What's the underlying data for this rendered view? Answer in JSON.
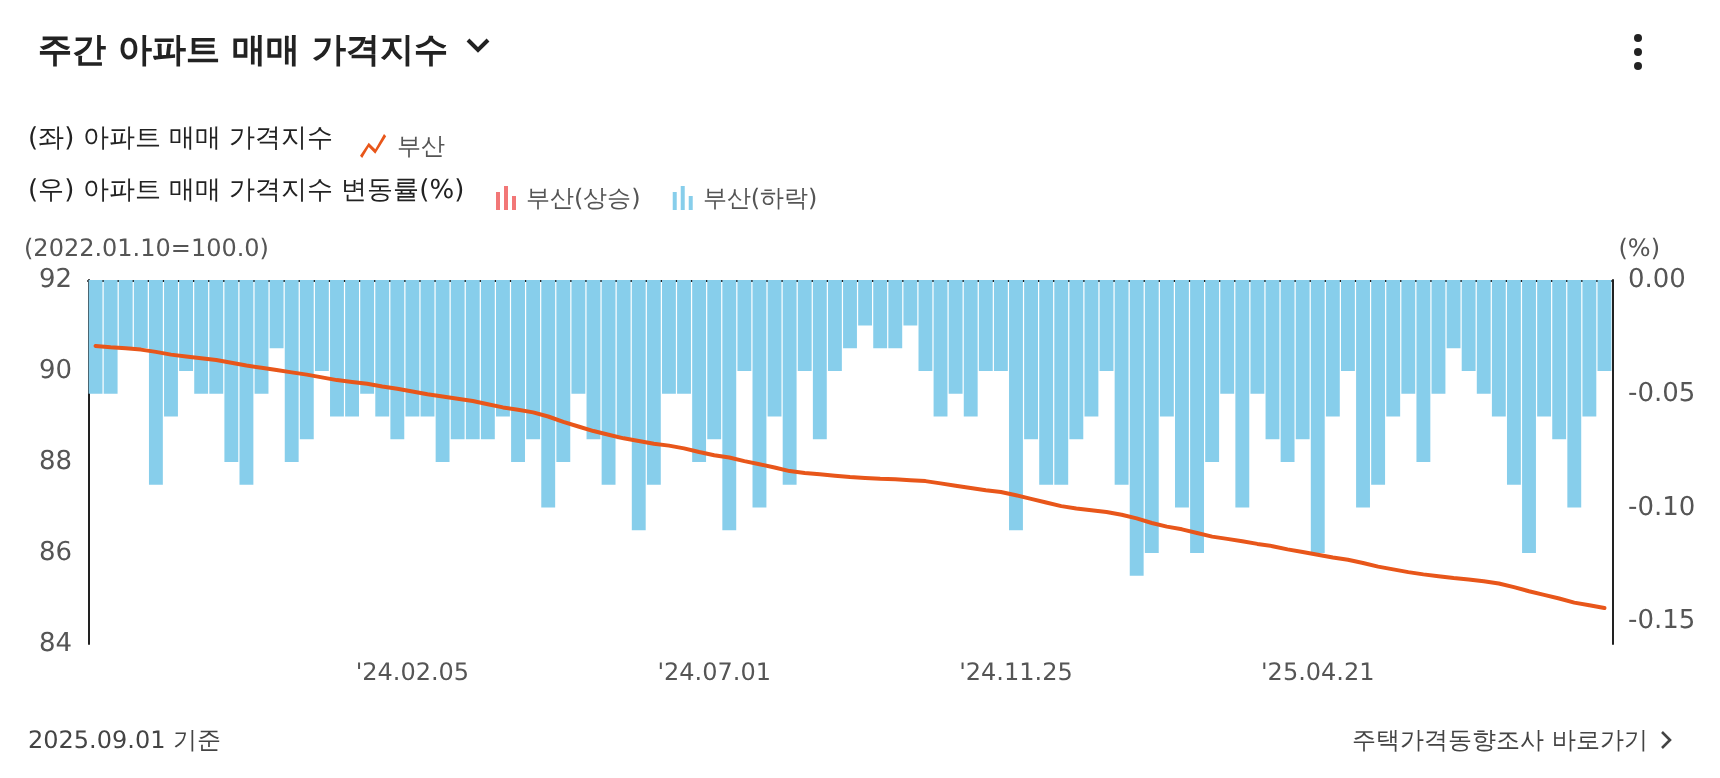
{
  "chart_data": {
    "type": "bar",
    "title": "주간 아파트 매매 가격지수",
    "ylabel": "(2022.01.10=100.0)",
    "y2label": "(%)",
    "annotations": [
      "(좌) 아파트 매매 가격지수",
      "(우) 아파트 매매 가격지수 변동률(%)",
      "2025.09.01 기준",
      "주택가격동향조사 바로가기"
    ],
    "categories": [
      null,
      null,
      null,
      null,
      null,
      null,
      null,
      null,
      null,
      null,
      null,
      null,
      null,
      null,
      null,
      null,
      null,
      null,
      null,
      null,
      null,
      "'24.02.05",
      null,
      null,
      null,
      null,
      null,
      null,
      null,
      null,
      null,
      null,
      null,
      null,
      null,
      null,
      null,
      null,
      null,
      null,
      null,
      "'24.07.01",
      null,
      null,
      null,
      null,
      null,
      null,
      null,
      null,
      null,
      null,
      null,
      null,
      null,
      null,
      null,
      null,
      null,
      null,
      null,
      "'24.11.25",
      null,
      null,
      null,
      null,
      null,
      null,
      null,
      null,
      null,
      null,
      null,
      null,
      null,
      null,
      null,
      null,
      null,
      null,
      null,
      "'25.04.21",
      null,
      null,
      null,
      null,
      null,
      null,
      null,
      null,
      null,
      null,
      null,
      null,
      null,
      null,
      null,
      null,
      null,
      null,
      null
    ],
    "series": [
      {
        "name": "부산",
        "type": "line",
        "color": "#e8561a",
        "values": [
          90.55,
          90.52,
          90.5,
          90.47,
          90.42,
          90.36,
          90.32,
          90.28,
          90.24,
          90.18,
          90.12,
          90.07,
          90.02,
          89.97,
          89.92,
          89.86,
          89.8,
          89.76,
          89.72,
          89.66,
          89.61,
          89.55,
          89.49,
          89.44,
          89.39,
          89.34,
          89.27,
          89.2,
          89.15,
          89.09,
          89.0,
          88.88,
          88.78,
          88.68,
          88.6,
          88.52,
          88.46,
          88.4,
          88.36,
          88.3,
          88.22,
          88.15,
          88.1,
          88.02,
          87.95,
          87.88,
          87.8,
          87.76,
          87.73,
          87.7,
          87.67,
          87.65,
          87.63,
          87.62,
          87.6,
          87.58,
          87.53,
          87.48,
          87.43,
          87.38,
          87.34,
          87.27,
          87.19,
          87.11,
          87.03,
          86.98,
          86.94,
          86.9,
          86.84,
          86.76,
          86.66,
          86.58,
          86.52,
          86.44,
          86.36,
          86.31,
          86.26,
          86.2,
          86.15,
          86.08,
          86.02,
          85.96,
          85.9,
          85.85,
          85.78,
          85.7,
          85.64,
          85.58,
          85.53,
          85.49,
          85.45,
          85.42,
          85.38,
          85.33,
          85.25,
          85.16,
          85.08,
          85.0,
          84.91,
          84.85,
          84.79
        ]
      },
      {
        "name": "부산(상승)",
        "axis": "y2",
        "color": "#f27777",
        "values": [
          null,
          null,
          null,
          null,
          null,
          null,
          null,
          null,
          null,
          null,
          null,
          null,
          null,
          null,
          null,
          null,
          null,
          null,
          null,
          null,
          null,
          null,
          null,
          null,
          null,
          null,
          null,
          null,
          null,
          null,
          null,
          null,
          null,
          null,
          null,
          null,
          null,
          null,
          null,
          null,
          null,
          null,
          null,
          null,
          null,
          null,
          null,
          null,
          null,
          null,
          null,
          null,
          null,
          null,
          null,
          null,
          null,
          null,
          null,
          null,
          null,
          null,
          null,
          null,
          null,
          null,
          null,
          null,
          null,
          null,
          null,
          null,
          null,
          null,
          null,
          null,
          null,
          null,
          null,
          null,
          null,
          null,
          null,
          null,
          null,
          null,
          null,
          null,
          null,
          null,
          null,
          null,
          null,
          null,
          null,
          null,
          null,
          null,
          null,
          null,
          null
        ]
      },
      {
        "name": "부산(하락)",
        "axis": "y2",
        "color": "#87ceeb",
        "values": [
          -0.05,
          -0.05,
          -0.03,
          -0.03,
          -0.09,
          -0.06,
          -0.04,
          -0.05,
          -0.05,
          -0.08,
          -0.09,
          -0.05,
          -0.03,
          -0.08,
          -0.07,
          -0.04,
          -0.06,
          -0.06,
          -0.05,
          -0.06,
          -0.07,
          -0.06,
          -0.06,
          -0.08,
          -0.07,
          -0.07,
          -0.07,
          -0.06,
          -0.08,
          -0.07,
          -0.1,
          -0.08,
          -0.05,
          -0.07,
          -0.09,
          -0.07,
          -0.11,
          -0.09,
          -0.05,
          -0.05,
          -0.08,
          -0.07,
          -0.11,
          -0.04,
          -0.1,
          -0.06,
          -0.09,
          -0.04,
          -0.07,
          -0.04,
          -0.03,
          -0.02,
          -0.03,
          -0.03,
          -0.02,
          -0.04,
          -0.06,
          -0.05,
          -0.06,
          -0.04,
          -0.04,
          -0.11,
          -0.07,
          -0.09,
          -0.09,
          -0.07,
          -0.06,
          -0.04,
          -0.09,
          -0.13,
          -0.12,
          -0.06,
          -0.1,
          -0.12,
          -0.08,
          -0.05,
          -0.1,
          -0.05,
          -0.07,
          -0.08,
          -0.07,
          -0.12,
          -0.06,
          -0.04,
          -0.1,
          -0.09,
          -0.06,
          -0.05,
          -0.08,
          -0.05,
          -0.03,
          -0.04,
          -0.05,
          -0.06,
          -0.09,
          -0.12,
          -0.06,
          -0.07,
          -0.1,
          -0.06,
          -0.04
        ]
      }
    ],
    "ylim": [
      84,
      92
    ],
    "yticks": [
      84,
      86,
      88,
      90,
      92
    ],
    "y2lim": [
      -0.16,
      0
    ],
    "y2ticks": [
      {
        "value": 0,
        "label": "0.00"
      },
      {
        "value": -0.05,
        "label": "-0.05"
      },
      {
        "value": -0.1,
        "label": "-0.10"
      },
      {
        "value": -0.15,
        "label": "-0.15"
      }
    ],
    "grid": false,
    "legend": "top left"
  }
}
